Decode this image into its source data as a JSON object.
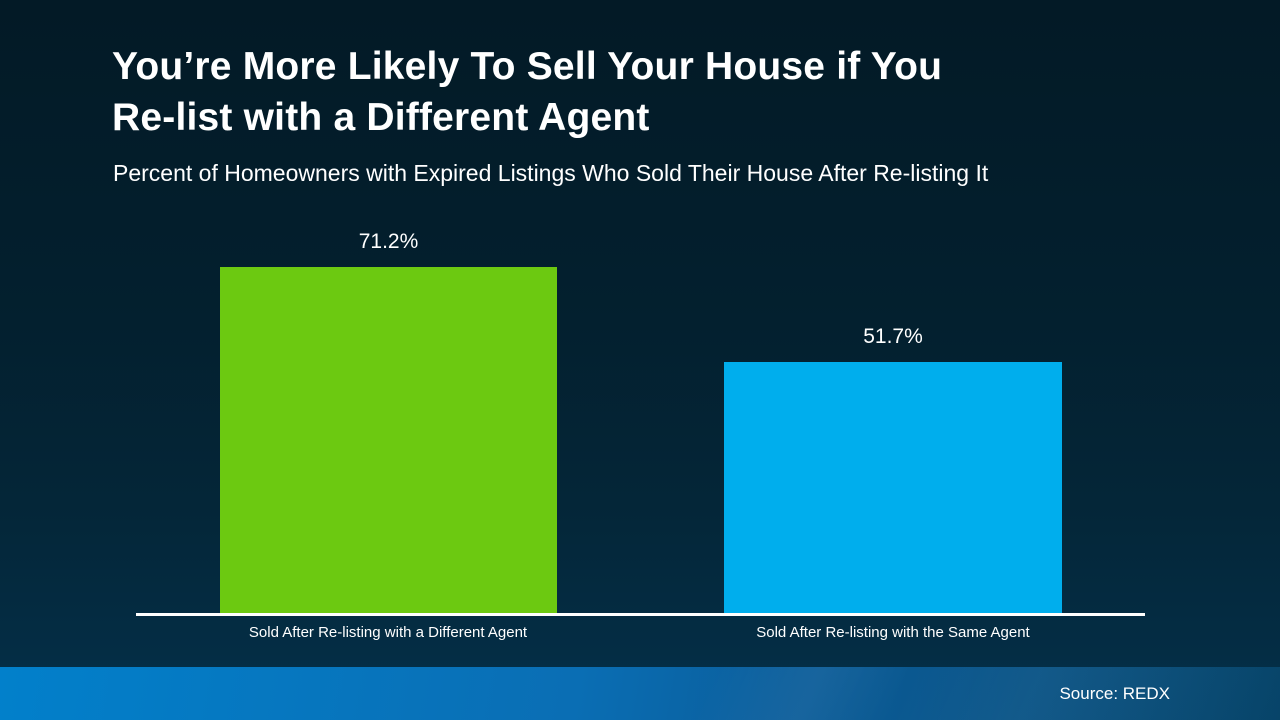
{
  "slide": {
    "title_line1": "You’re More Likely To Sell Your House if You",
    "title_line2": "Re-list with a Different Agent",
    "subtitle": "Percent of Homeowners with Expired Listings Who Sold Their House After Re-listing It",
    "source": "Source: REDX"
  },
  "chart_data": {
    "type": "bar",
    "title": "You’re More Likely To Sell Your House if You Re-list with a Different Agent",
    "subtitle": "Percent of Homeowners with Expired Listings Who Sold Their House After Re-listing It",
    "categories": [
      "Sold After Re-listing with a Different Agent",
      "Sold After Re-listing with the Same Agent"
    ],
    "values": [
      71.2,
      51.7
    ],
    "value_labels": [
      "71.2%",
      "51.7%"
    ],
    "bar_colors": [
      "#6cc911",
      "#00aeed"
    ],
    "xlabel": "",
    "ylabel": "",
    "ylim": [
      0,
      80
    ],
    "grid": false,
    "legend": false,
    "value_labels_position": "above-bars",
    "axis_line_color": "#ffffff",
    "background_top": "#031a26",
    "background_bottom": "#04304a",
    "footer_color_left": "#0280cb",
    "footer_color_right": "#07486f",
    "source": "Source: REDX"
  }
}
